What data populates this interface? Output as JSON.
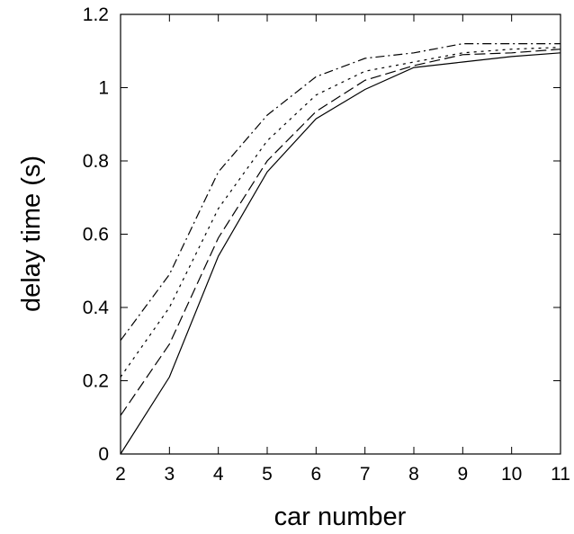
{
  "chart_data": {
    "type": "line",
    "title": "",
    "xlabel": "car number",
    "ylabel": "delay time (s)",
    "xlim": [
      2,
      11
    ],
    "ylim": [
      0,
      1.2
    ],
    "x_ticks": [
      "2",
      "3",
      "4",
      "5",
      "6",
      "7",
      "8",
      "9",
      "10",
      "11"
    ],
    "y_ticks": [
      "0",
      "0.2",
      "0.4",
      "0.6",
      "0.8",
      "1",
      "1.2"
    ],
    "grid": false,
    "legend": "none",
    "line_color": "#000000",
    "x": [
      2,
      3,
      4,
      5,
      6,
      7,
      8,
      9,
      10,
      11
    ],
    "series": [
      {
        "style": "solid",
        "values": [
          0.0,
          0.21,
          0.54,
          0.77,
          0.915,
          0.995,
          1.055,
          1.07,
          1.085,
          1.095
        ]
      },
      {
        "style": "dashed",
        "values": [
          0.105,
          0.3,
          0.59,
          0.8,
          0.935,
          1.02,
          1.06,
          1.09,
          1.095,
          1.105
        ]
      },
      {
        "style": "dotted",
        "values": [
          0.21,
          0.4,
          0.67,
          0.855,
          0.98,
          1.045,
          1.07,
          1.095,
          1.105,
          1.11
        ]
      },
      {
        "style": "dash-dot",
        "values": [
          0.31,
          0.49,
          0.77,
          0.925,
          1.03,
          1.08,
          1.095,
          1.12,
          1.12,
          1.12
        ]
      }
    ]
  }
}
